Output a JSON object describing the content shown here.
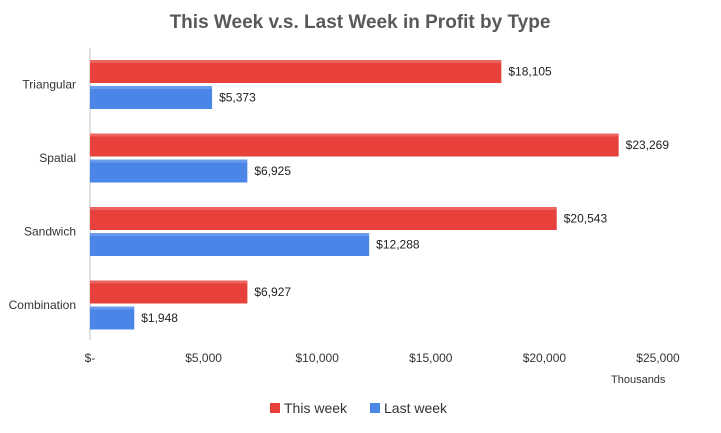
{
  "chart_data": {
    "type": "bar",
    "orientation": "horizontal",
    "title": "This Week v.s. Last Week in Profit by Type",
    "categories": [
      "Triangular",
      "Spatial",
      "Sandwich",
      "Combination"
    ],
    "series": [
      {
        "name": "This week",
        "color": "#e8413c",
        "values": [
          18105,
          23269,
          20543,
          6927
        ],
        "labels": [
          "$18,105",
          "$23,269",
          "$20,543",
          "$6,927"
        ]
      },
      {
        "name": "Last week",
        "color": "#4a86e8",
        "values": [
          5373,
          6925,
          12288,
          1948
        ],
        "labels": [
          "$5,373",
          "$6,925",
          "$12,288",
          "$1,948"
        ]
      }
    ],
    "xlim": [
      0,
      25000
    ],
    "xticks": [
      0,
      5000,
      10000,
      15000,
      20000,
      25000
    ],
    "xtick_labels": [
      "$-",
      "$5,000",
      "$10,000",
      "$15,000",
      "$20,000",
      "$25,000"
    ],
    "x_unit_label": "Thousands",
    "grid": false,
    "legend_position": "bottom"
  }
}
